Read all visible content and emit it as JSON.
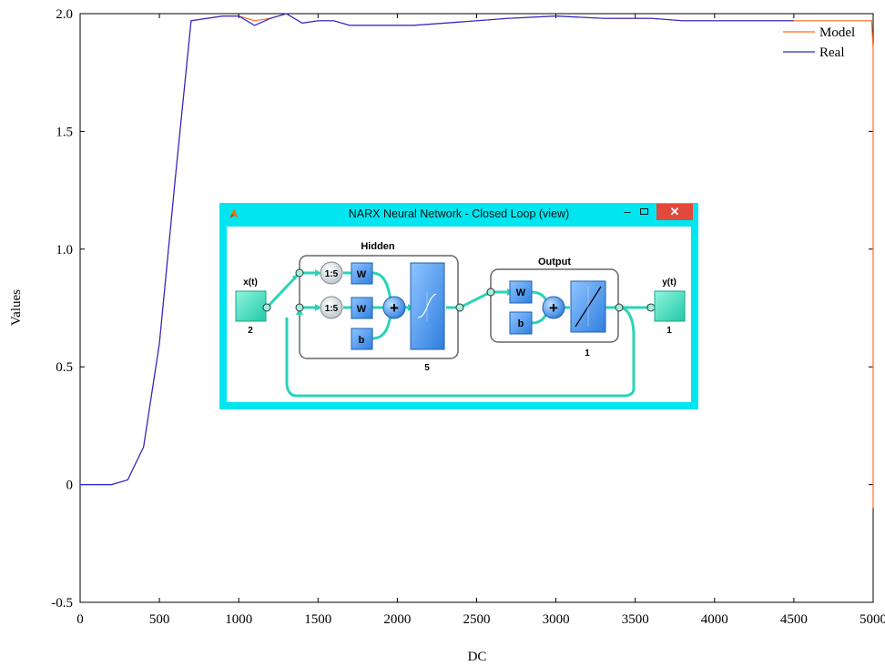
{
  "chart_data": {
    "type": "line",
    "xlabel": "DC",
    "ylabel": "Values",
    "xlim": [
      0,
      5000
    ],
    "ylim": [
      -0.5,
      2.0
    ],
    "x_ticks": [
      "0",
      "500",
      "1000",
      "1500",
      "2000",
      "2500",
      "3000",
      "3500",
      "4000",
      "4500",
      "5000"
    ],
    "y_ticks": [
      "-0.5",
      "0",
      "0.5",
      "1.0",
      "1.5",
      "2.0"
    ],
    "grid": false,
    "legend_position": "top-right",
    "series": [
      {
        "name": "Model",
        "color": "#ff6a1f",
        "x": [
          0,
          200,
          300,
          400,
          500,
          600,
          700,
          900,
          1000,
          1100,
          1200,
          1300,
          1400,
          1500,
          1600,
          1700,
          1900,
          2100,
          2300,
          2500,
          2700,
          3000,
          3300,
          3600,
          3800,
          4000,
          4300,
          4500,
          4990,
          5000,
          5000
        ],
        "y": [
          0,
          0,
          0.02,
          0.16,
          0.6,
          1.3,
          1.97,
          1.99,
          1.99,
          1.97,
          1.98,
          2.0,
          1.96,
          1.97,
          1.97,
          1.95,
          1.95,
          1.95,
          1.96,
          1.97,
          1.98,
          1.99,
          1.98,
          1.98,
          1.97,
          1.97,
          1.97,
          1.97,
          1.97,
          1.85,
          -0.1
        ]
      },
      {
        "name": "Real",
        "color": "#2a2ad0",
        "x": [
          0,
          200,
          300,
          400,
          500,
          600,
          700,
          900,
          1000,
          1100,
          1200,
          1300,
          1400,
          1500,
          1600,
          1700,
          1900,
          2100,
          2300,
          2500,
          2700,
          3000,
          3300,
          3600,
          3800,
          4000,
          4300,
          4500
        ],
        "y": [
          0,
          0,
          0.02,
          0.16,
          0.6,
          1.3,
          1.97,
          1.99,
          1.99,
          1.95,
          1.98,
          2.0,
          1.96,
          1.97,
          1.97,
          1.95,
          1.95,
          1.95,
          1.96,
          1.97,
          1.98,
          1.99,
          1.98,
          1.98,
          1.97,
          1.97,
          1.97,
          1.97
        ]
      }
    ]
  },
  "inset_window": {
    "title": "NARX Neural Network - Closed Loop (view)",
    "minimize_glyph": "–",
    "close_glyph": "✕",
    "icon": "matlab-logo-icon",
    "colors": {
      "frame": "#00e6f0",
      "close": "#e04a3c",
      "block": "#4f9bf0",
      "io": "#40e0c0"
    },
    "input": {
      "label": "x(t)",
      "size": "2"
    },
    "output": {
      "label": "y(t)",
      "size": "1"
    },
    "hidden": {
      "title": "Hidden",
      "delay_label": "1:5",
      "weight_label": "W",
      "bias_label": "b",
      "size": "5"
    },
    "output_layer": {
      "title": "Output",
      "weight_label": "W",
      "bias_label": "b",
      "size": "1"
    },
    "sum_symbol": "+"
  }
}
